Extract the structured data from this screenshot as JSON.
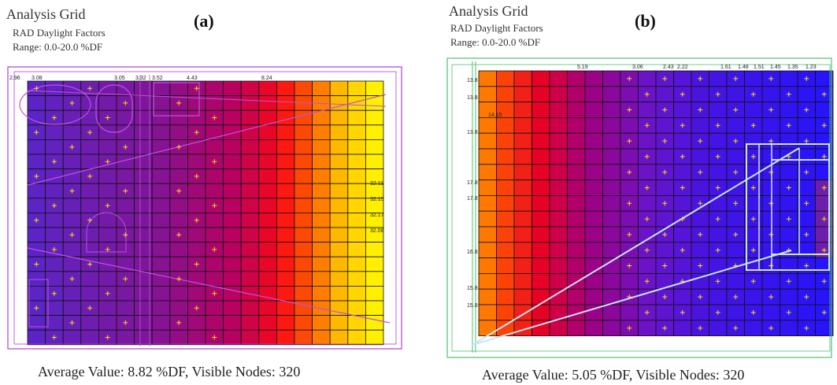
{
  "panels": [
    {
      "id": "a",
      "title": "Analysis Grid",
      "subtitle": "RAD Daylight Factors",
      "range": "Range: 0.0-20.0 %DF",
      "label": "(a)",
      "caption": "Average Value:  8.82  %DF,  Visible  Nodes: 320",
      "top_labels": [
        "2.96",
        "3.08",
        "3.05",
        "3.32",
        "3.52",
        "4.43",
        "8.24"
      ],
      "side_labels": [
        "32.11",
        "32.15",
        "32.17",
        "32.08"
      ]
    },
    {
      "id": "b",
      "title": "Analysis Grid",
      "subtitle": "RAD Daylight Factors",
      "range": "Range: 0.0-20.0 %DF",
      "label": "(b)",
      "caption": "Average Value:  5.05  %DF,  Visible  Nodes: 320",
      "top_labels": [
        "5.19",
        "3.06",
        "2.43",
        "2.22",
        "1.61",
        "1.48",
        "1.51",
        "1.45",
        "1.35",
        "1.23"
      ],
      "side_labels": [
        "13.8",
        "13.8",
        "14.15",
        "13.8",
        "17.8",
        "17.8",
        "16.8",
        "15.8",
        "15.8"
      ]
    }
  ],
  "colors": {
    "grid_line": "#111111",
    "panel_a_outline": "#b040d0",
    "panel_b_outline": "#4cc070",
    "node_marker": "#f5e400",
    "overlay_a": "#c050e0",
    "overlay_b": "#c8e4f4"
  }
}
